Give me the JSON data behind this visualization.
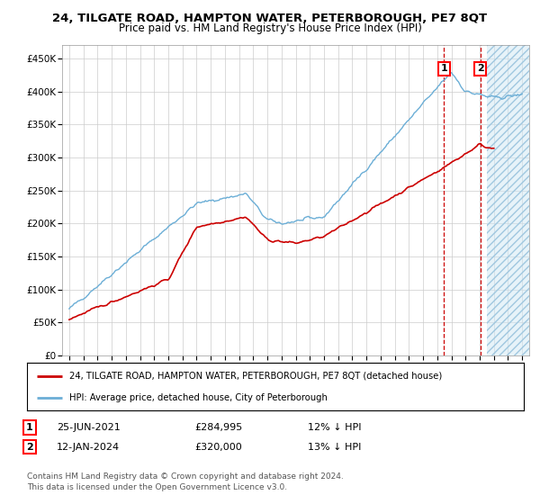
{
  "title": "24, TILGATE ROAD, HAMPTON WATER, PETERBOROUGH, PE7 8QT",
  "subtitle": "Price paid vs. HM Land Registry's House Price Index (HPI)",
  "legend_label1": "24, TILGATE ROAD, HAMPTON WATER, PETERBOROUGH, PE7 8QT (detached house)",
  "legend_label2": "HPI: Average price, detached house, City of Peterborough",
  "annotation1_date": "25-JUN-2021",
  "annotation1_price": "£284,995",
  "annotation1_hpi": "12% ↓ HPI",
  "annotation2_date": "12-JAN-2024",
  "annotation2_price": "£320,000",
  "annotation2_hpi": "13% ↓ HPI",
  "footer": "Contains HM Land Registry data © Crown copyright and database right 2024.\nThis data is licensed under the Open Government Licence v3.0.",
  "sale1_year": 2021.484,
  "sale1_value": 284995,
  "sale2_year": 2024.036,
  "sale2_value": 320000,
  "hpi_color": "#6baed6",
  "price_color": "#cc0000",
  "vline_color": "#cc0000",
  "ylim": [
    0,
    470000
  ],
  "xlim_start": 1994.5,
  "xlim_end": 2027.5,
  "background_color": "#ffffff",
  "grid_color": "#cccccc",
  "hatch_start": 2024.5,
  "title_fontsize": 9.5,
  "subtitle_fontsize": 8.5
}
